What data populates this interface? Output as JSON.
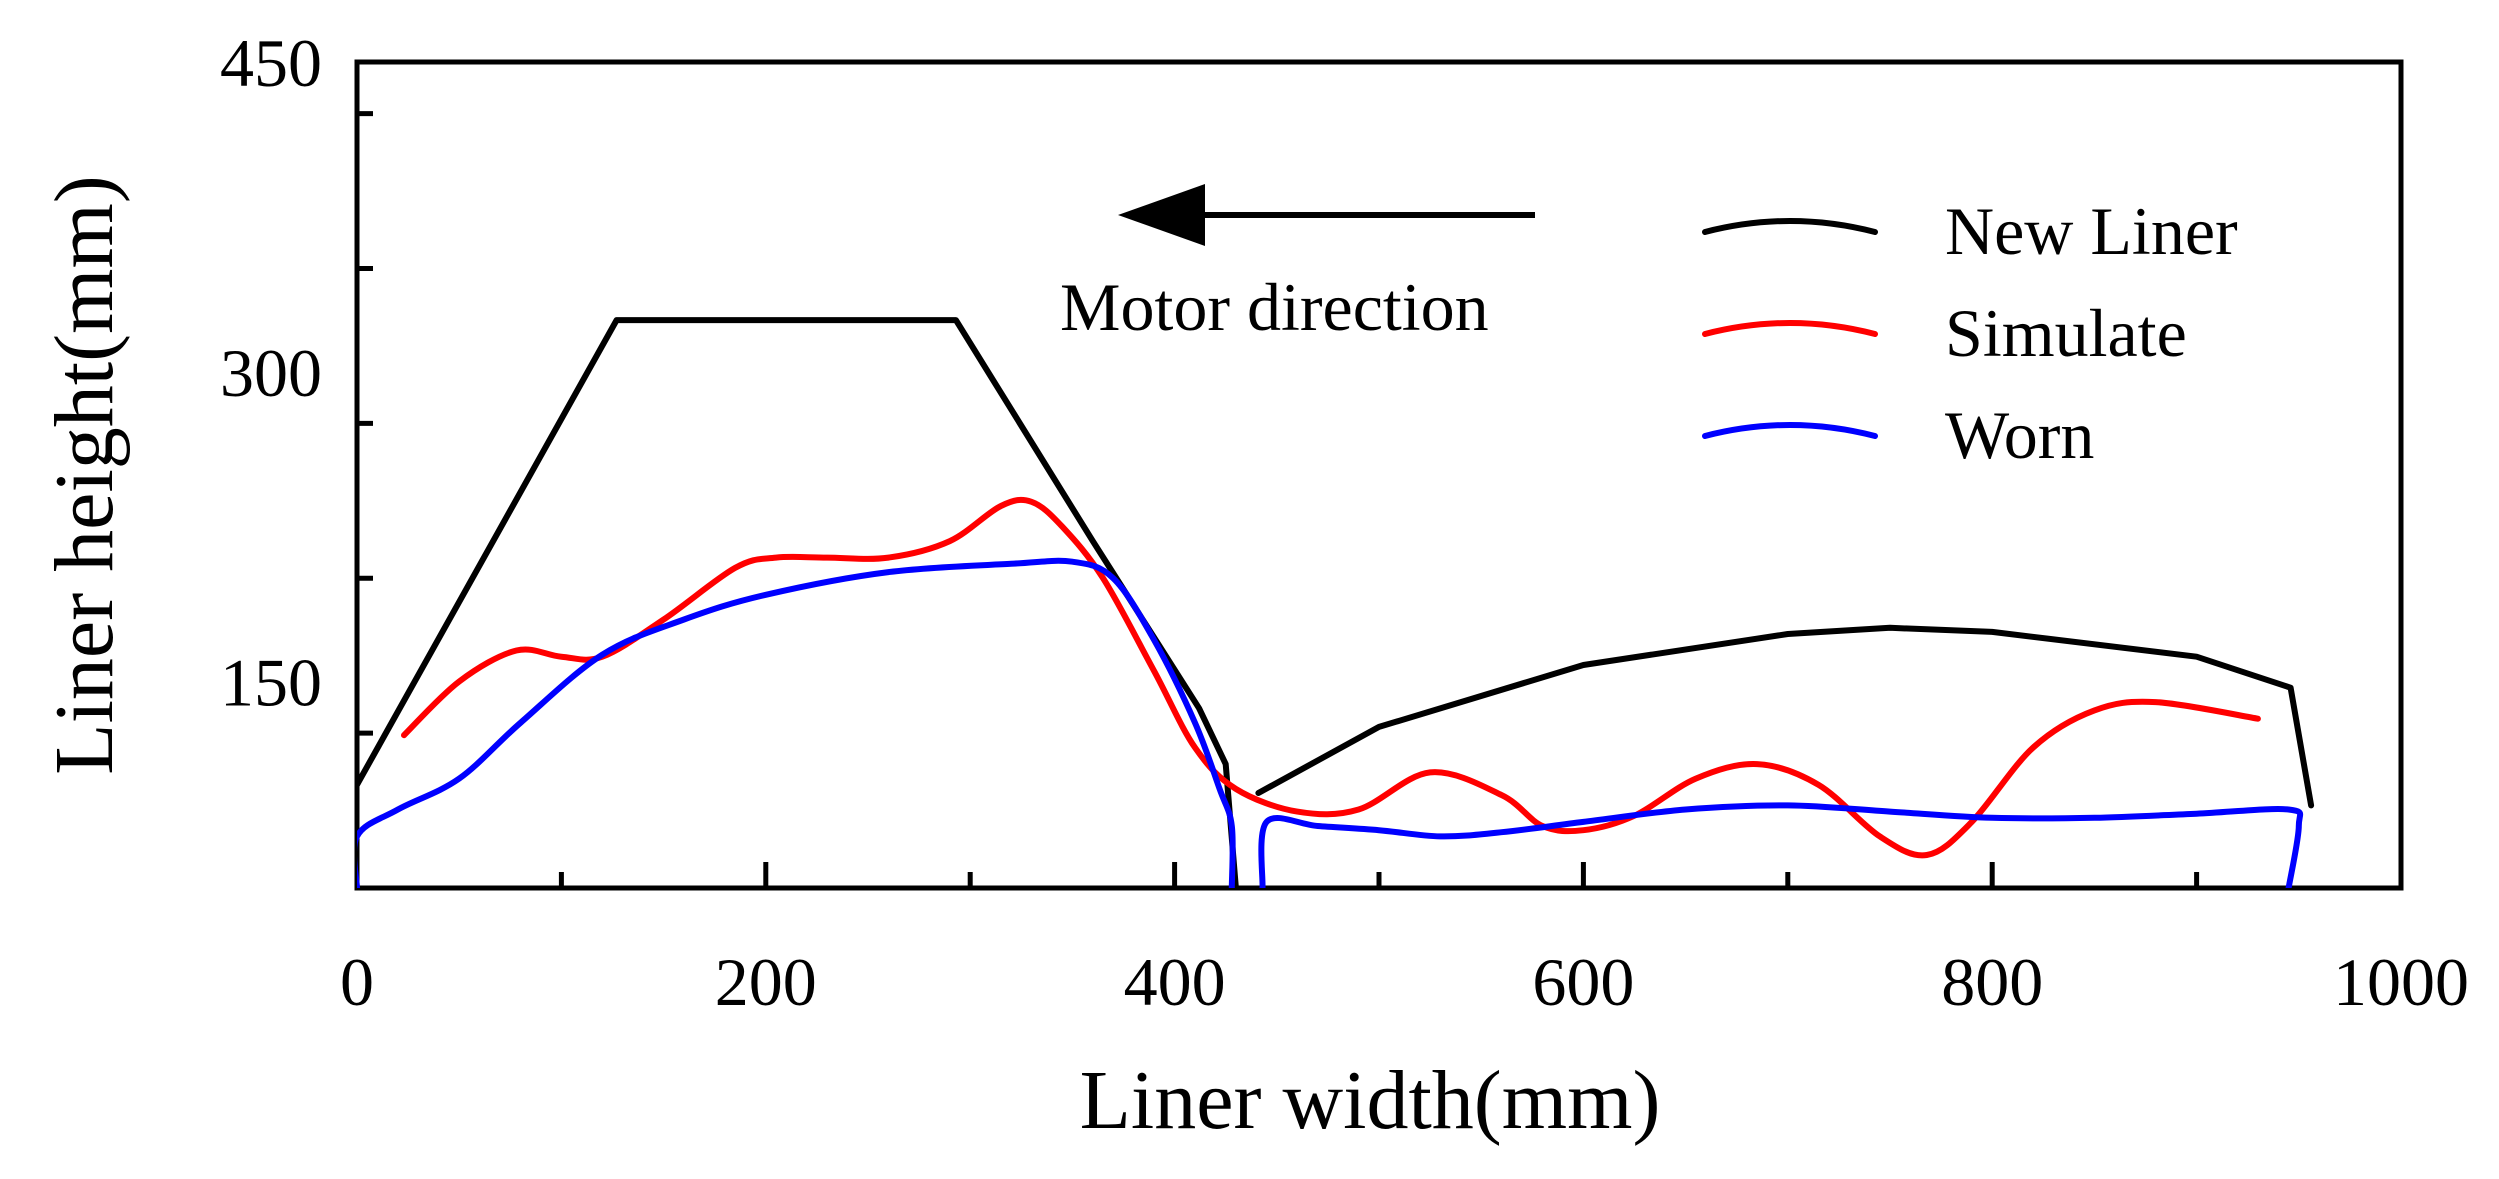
{
  "chart_data": {
    "type": "line",
    "title": "",
    "xlabel": "Liner width(mm)",
    "ylabel": "Liner height(mm)",
    "xlim": [
      0,
      1000
    ],
    "ylim": [
      50,
      450
    ],
    "xticks": [
      0,
      200,
      400,
      600,
      800,
      1000
    ],
    "yticks": [
      150,
      300,
      450
    ],
    "annotation": {
      "text": "Motor direction",
      "arrow_direction": "left"
    },
    "legend_position": "top-right",
    "series": [
      {
        "name": "New Liner",
        "color": "#000000",
        "segments": [
          [
            [
              0,
              100
            ],
            [
              127,
              325
            ],
            [
              293,
              325
            ],
            [
              360,
              218
            ],
            [
              412,
              137
            ],
            [
              425,
              110
            ],
            [
              430,
              50
            ]
          ],
          [
            [
              441,
              96
            ],
            [
              500,
              128
            ],
            [
              600,
              158
            ],
            [
              700,
              173
            ],
            [
              750,
              176
            ],
            [
              800,
              174
            ],
            [
              900,
              162
            ],
            [
              946,
              147
            ],
            [
              956,
              90
            ]
          ]
        ]
      },
      {
        "name": "Simulate",
        "color": "#ff0000",
        "segments": [
          [
            [
              23,
              124
            ],
            [
              50,
              150
            ],
            [
              78,
              165
            ],
            [
              100,
              162
            ],
            [
              120,
              162
            ],
            [
              150,
              180
            ],
            [
              185,
              205
            ],
            [
              205,
              210
            ],
            [
              230,
              210
            ],
            [
              260,
              210
            ],
            [
              290,
              218
            ],
            [
              315,
              235
            ],
            [
              330,
              237
            ],
            [
              345,
              225
            ],
            [
              365,
              200
            ],
            [
              390,
              155
            ],
            [
              410,
              118
            ],
            [
              430,
              98
            ],
            [
              460,
              87
            ],
            [
              490,
              88
            ],
            [
              525,
              106
            ],
            [
              560,
              95
            ],
            [
              580,
              80
            ],
            [
              600,
              78
            ],
            [
              625,
              85
            ],
            [
              655,
              103
            ],
            [
              685,
              110
            ],
            [
              715,
              100
            ],
            [
              745,
              75
            ],
            [
              768,
              66
            ],
            [
              790,
              82
            ],
            [
              820,
              118
            ],
            [
              850,
              136
            ],
            [
              880,
              140
            ],
            [
              930,
              132
            ]
          ]
        ]
      },
      {
        "name": "Worn",
        "color": "#0000ff",
        "segments": [
          [
            [
              0,
              50
            ],
            [
              0,
              75
            ],
            [
              20,
              88
            ],
            [
              50,
              103
            ],
            [
              80,
              130
            ],
            [
              120,
              163
            ],
            [
              160,
              180
            ],
            [
              200,
              192
            ],
            [
              260,
              203
            ],
            [
              320,
              207
            ],
            [
              350,
              208
            ],
            [
              370,
              200
            ],
            [
              390,
              170
            ],
            [
              410,
              130
            ],
            [
              422,
              98
            ],
            [
              428,
              80
            ],
            [
              428,
              50
            ]
          ],
          [
            [
              443,
              50
            ],
            [
              445,
              82
            ],
            [
              470,
              80
            ],
            [
              500,
              78
            ],
            [
              530,
              75
            ],
            [
              560,
              77
            ],
            [
              600,
              82
            ],
            [
              650,
              88
            ],
            [
              700,
              90
            ],
            [
              750,
              87
            ],
            [
              800,
              84
            ],
            [
              850,
              84
            ],
            [
              900,
              86
            ],
            [
              945,
              88
            ],
            [
              950,
              80
            ],
            [
              945,
              50
            ]
          ]
        ]
      }
    ]
  }
}
